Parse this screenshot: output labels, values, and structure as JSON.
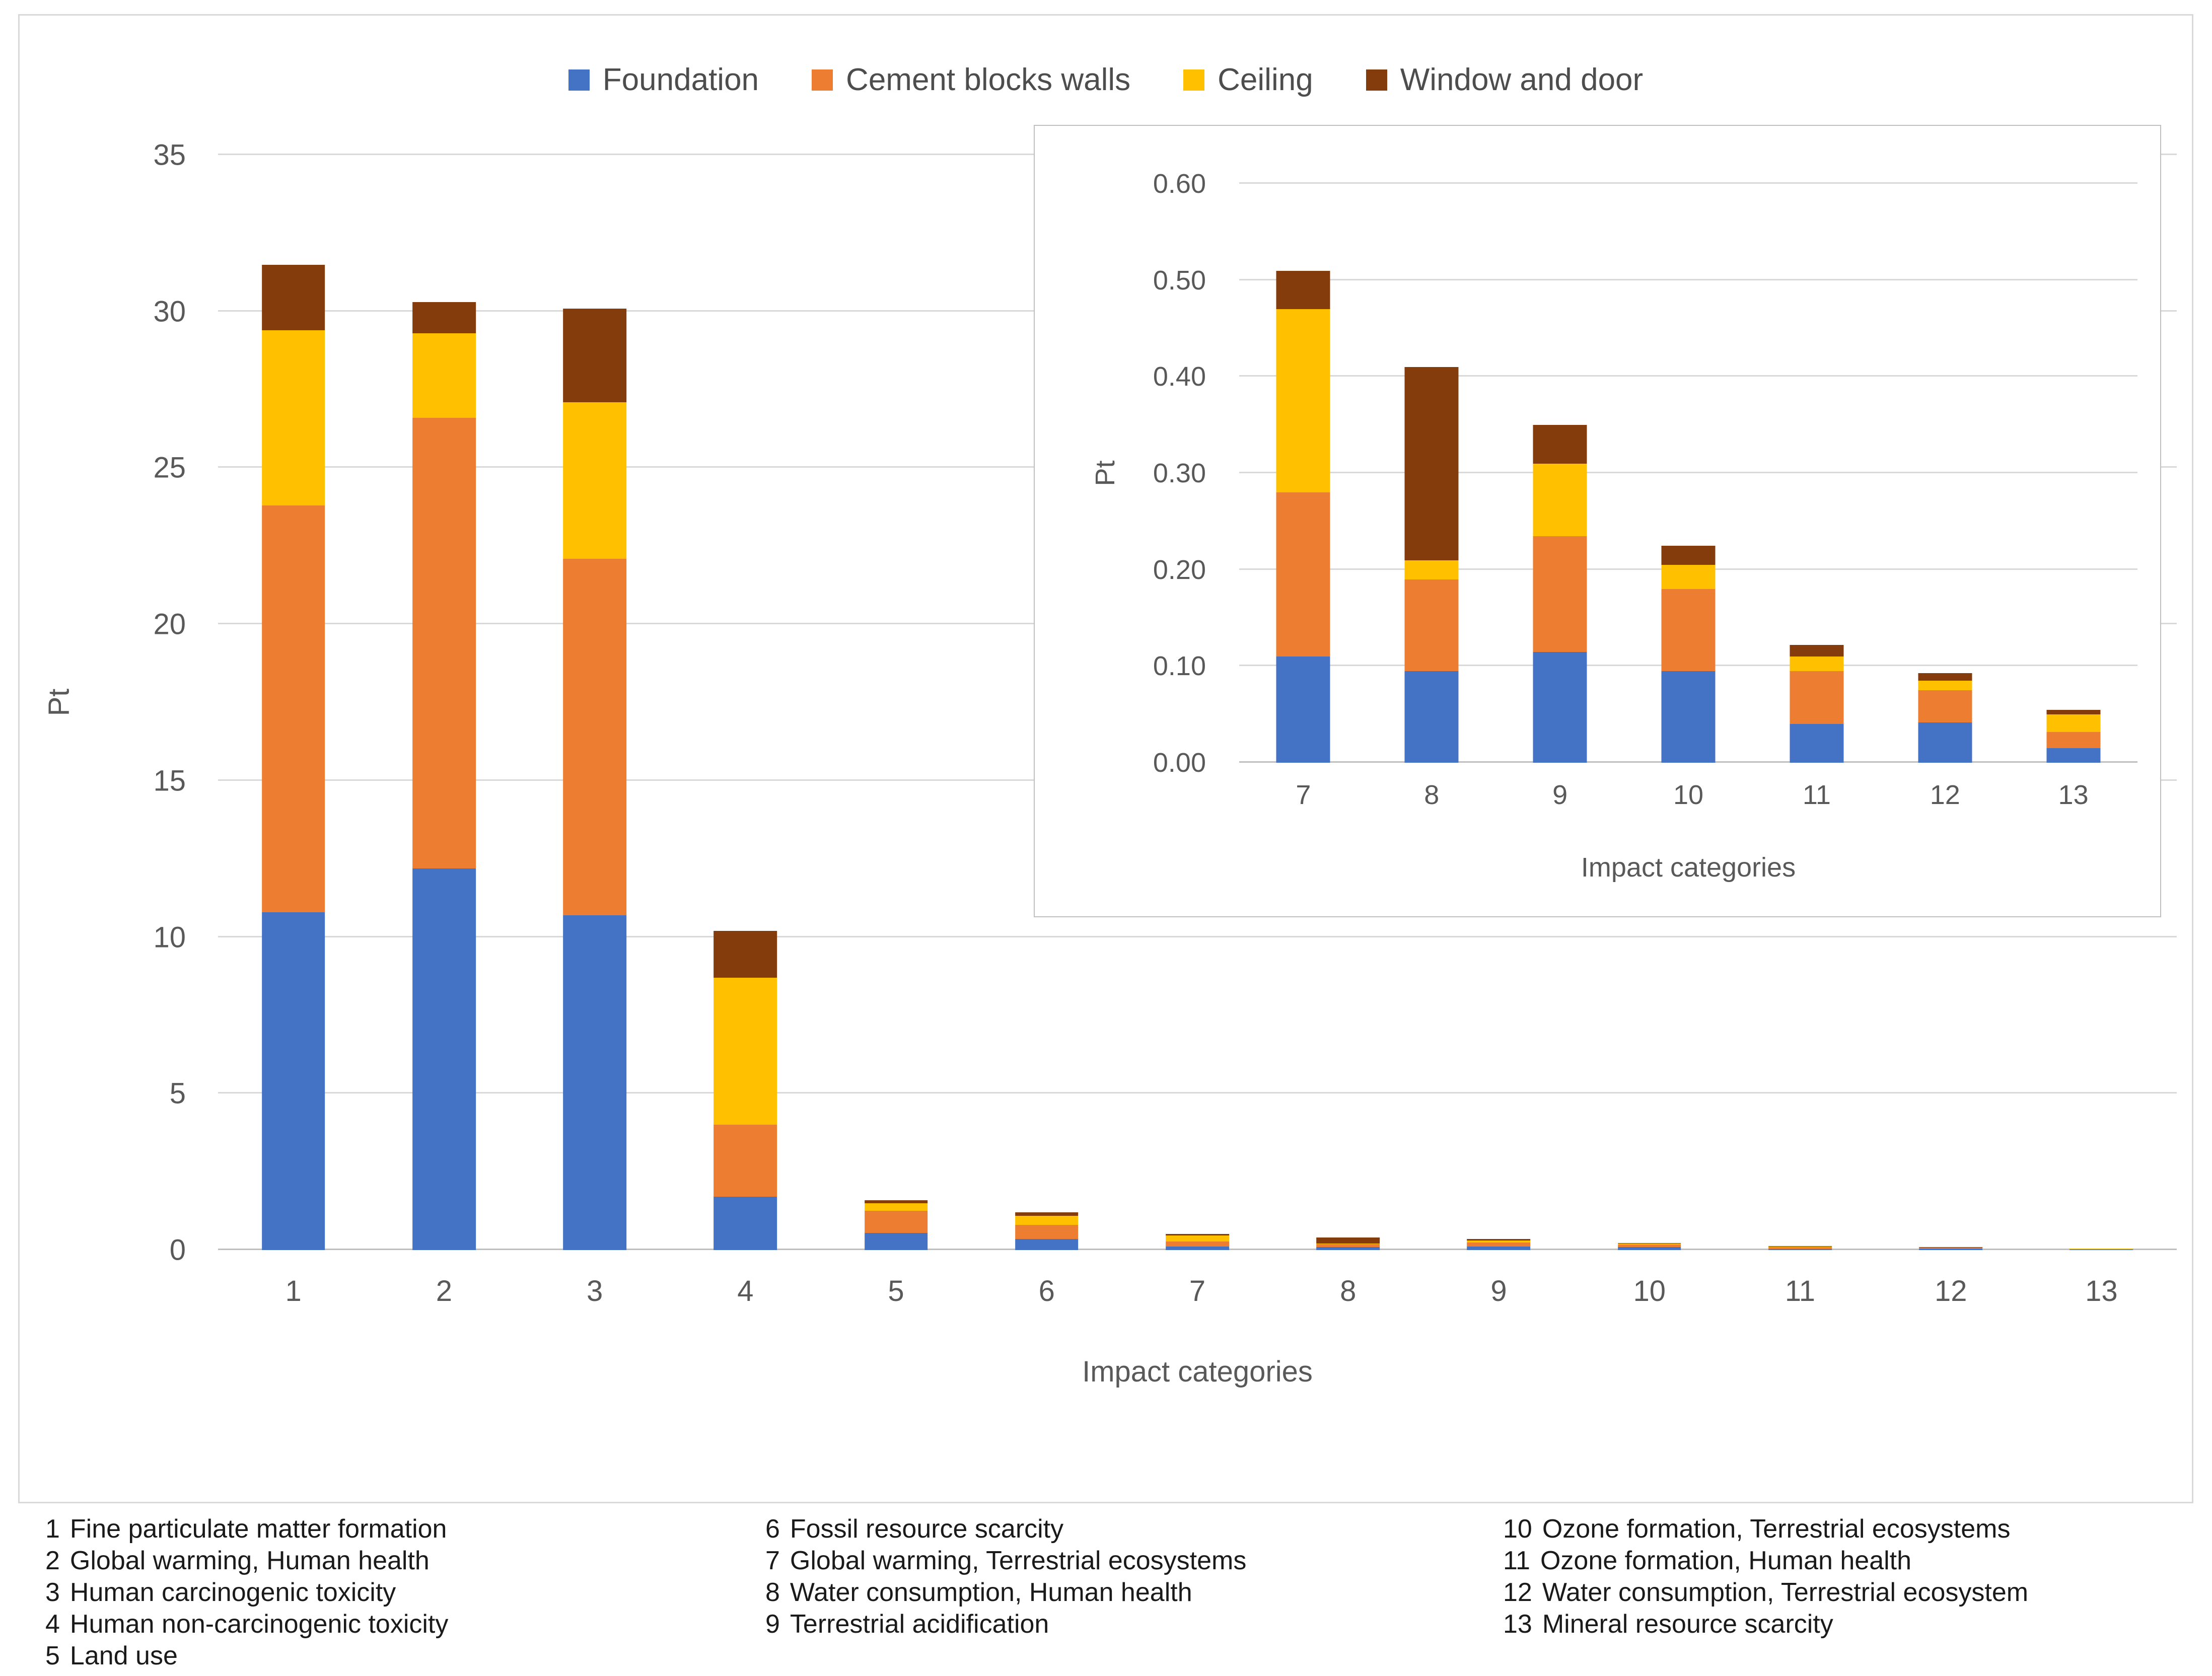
{
  "legend": {
    "items": [
      {
        "key": "foundation",
        "label": "Foundation",
        "color": "#4472C4"
      },
      {
        "key": "cement-blocks-walls",
        "label": "Cement blocks walls",
        "color": "#ED7D31"
      },
      {
        "key": "ceiling",
        "label": "Ceiling",
        "color": "#FFC000"
      },
      {
        "key": "window-and-door",
        "label": "Window and door",
        "color": "#843C0C"
      }
    ]
  },
  "chart_data": [
    {
      "type": "bar",
      "stacked": true,
      "title": "",
      "xlabel": "Impact categories",
      "ylabel": "Pt",
      "ylim": [
        0,
        35
      ],
      "yticks": [
        "0",
        "5",
        "10",
        "15",
        "20",
        "25",
        "30",
        "35"
      ],
      "grid": true,
      "legend_position": "top",
      "categories": [
        "1",
        "2",
        "3",
        "4",
        "5",
        "6",
        "7",
        "8",
        "9",
        "10",
        "11",
        "12",
        "13"
      ],
      "series": [
        {
          "name": "Foundation",
          "color": "#4472C4",
          "values": [
            10.8,
            12.2,
            10.7,
            1.7,
            0.55,
            0.35,
            0.11,
            0.095,
            0.115,
            0.095,
            0.04,
            0.042,
            0.015
          ]
        },
        {
          "name": "Cement blocks walls",
          "color": "#ED7D31",
          "values": [
            13.0,
            14.4,
            11.4,
            2.3,
            0.7,
            0.45,
            0.17,
            0.095,
            0.12,
            0.085,
            0.055,
            0.033,
            0.017
          ]
        },
        {
          "name": "Ceiling",
          "color": "#FFC000",
          "values": [
            5.6,
            2.7,
            5.0,
            4.7,
            0.25,
            0.3,
            0.19,
            0.02,
            0.075,
            0.025,
            0.015,
            0.01,
            0.018
          ]
        },
        {
          "name": "Window and door",
          "color": "#843C0C",
          "values": [
            2.1,
            1.0,
            3.0,
            1.5,
            0.1,
            0.1,
            0.04,
            0.2,
            0.04,
            0.02,
            0.012,
            0.008,
            0.005
          ]
        }
      ]
    },
    {
      "type": "bar",
      "stacked": true,
      "title": "",
      "xlabel": "Impact categories",
      "ylabel": "Pt",
      "ylim": [
        0,
        0.6
      ],
      "yticks": [
        "0.00",
        "0.10",
        "0.20",
        "0.30",
        "0.40",
        "0.50",
        "0.60"
      ],
      "grid": true,
      "legend_position": "none",
      "categories": [
        "7",
        "8",
        "9",
        "10",
        "11",
        "12",
        "13"
      ],
      "series": [
        {
          "name": "Foundation",
          "color": "#4472C4",
          "values": [
            0.11,
            0.095,
            0.115,
            0.095,
            0.04,
            0.042,
            0.015
          ]
        },
        {
          "name": "Cement blocks walls",
          "color": "#ED7D31",
          "values": [
            0.17,
            0.095,
            0.12,
            0.085,
            0.055,
            0.033,
            0.017
          ]
        },
        {
          "name": "Ceiling",
          "color": "#FFC000",
          "values": [
            0.19,
            0.02,
            0.075,
            0.025,
            0.015,
            0.01,
            0.018
          ]
        },
        {
          "name": "Window and door",
          "color": "#843C0C",
          "values": [
            0.04,
            0.2,
            0.04,
            0.02,
            0.012,
            0.008,
            0.005
          ]
        }
      ]
    }
  ],
  "footnotes": {
    "columns": [
      [
        {
          "n": "1",
          "label": "Fine particulate matter formation"
        },
        {
          "n": "2",
          "label": "Global warming, Human health"
        },
        {
          "n": "3",
          "label": "Human carcinogenic toxicity"
        },
        {
          "n": "4",
          "label": "Human non-carcinogenic toxicity"
        },
        {
          "n": "5",
          "label": "Land use"
        }
      ],
      [
        {
          "n": "6",
          "label": "Fossil resource scarcity"
        },
        {
          "n": "7",
          "label": "Global warming, Terrestrial ecosystems"
        },
        {
          "n": "8",
          "label": "Water consumption, Human health"
        },
        {
          "n": "9",
          "label": "Terrestrial acidification"
        }
      ],
      [
        {
          "n": "10",
          "label": "Ozone formation, Terrestrial ecosystems"
        },
        {
          "n": "11",
          "label": "Ozone formation, Human health"
        },
        {
          "n": "12",
          "label": "Water consumption, Terrestrial ecosystem"
        },
        {
          "n": "13",
          "label": "Mineral resource scarcity"
        }
      ]
    ]
  }
}
